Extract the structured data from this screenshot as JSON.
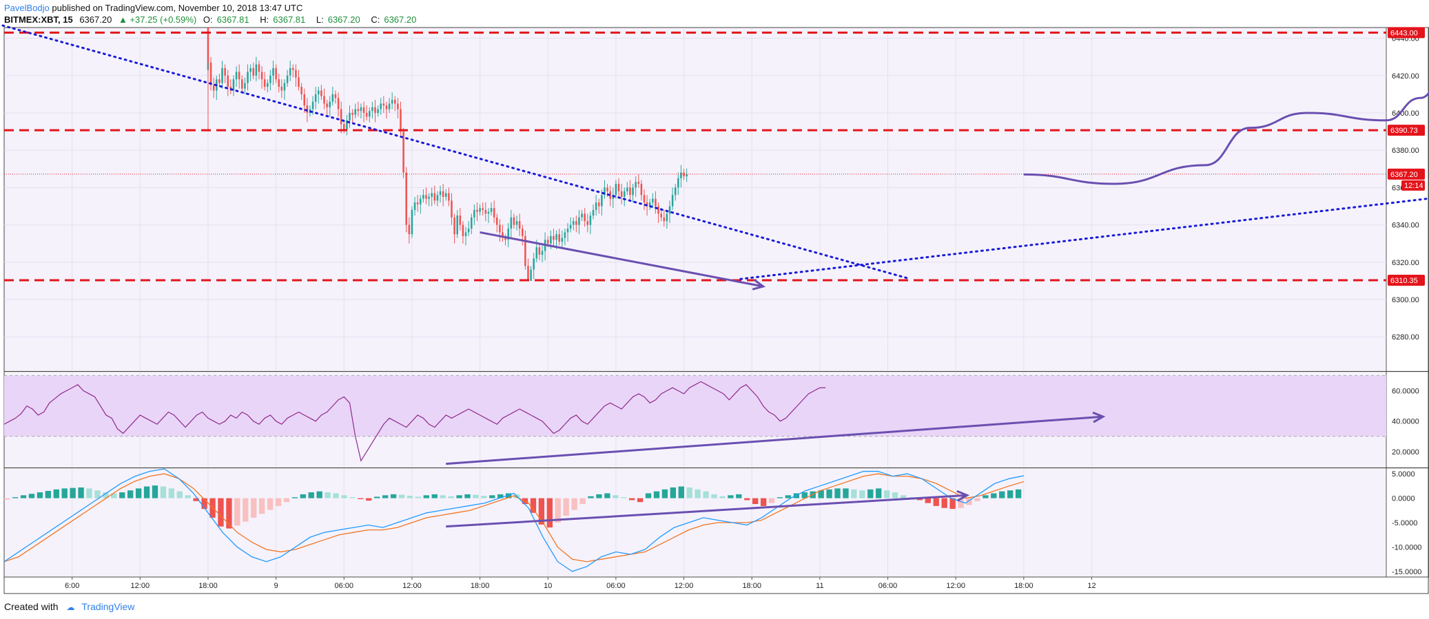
{
  "header": {
    "author": "PavelBodjo",
    "published": "published on TradingView.com, November 10, 2018 13:47 UTC",
    "symbol": "BITMEX:XBT, 15",
    "price": "6367.20",
    "change": "▲ +37.25 (+0.59%)",
    "open_label": "O:",
    "open": "6367.81",
    "high_label": "H:",
    "high": "6367.81",
    "low_label": "L:",
    "low": "6367.20",
    "close_label": "C:",
    "close": "6367.20"
  },
  "footer": {
    "created_with": "Created with",
    "brand": "TradingView"
  },
  "colors": {
    "up": "#26a69a",
    "down": "#ef5350",
    "level_line": "#e4141b",
    "trend_dotted": "#1a1ad8",
    "drawing": "#6a4fb0",
    "rsi": "#8e2a8e",
    "rsi_band": "#e9d5f7",
    "macd": "#1f9bff",
    "signal": "#f2751f",
    "hist_up_strong": "#26a69a",
    "hist_up_weak": "#a6e0d8",
    "hist_down_strong": "#ef5350",
    "hist_down_weak": "#f9c0c0",
    "background": "#f5f2fc"
  },
  "chart_data": [
    {
      "type": "candlestick",
      "ylim": [
        6262,
        6445
      ],
      "y_ticks": [
        "6280.00",
        "6300.00",
        "6320.00",
        "6340.00",
        "6360.00",
        "6380.00",
        "6400.00",
        "6420.00",
        "6440.00"
      ],
      "x_ticks": [
        "6:00",
        "12:00",
        "18:00",
        "9",
        "06:00",
        "12:00",
        "18:00",
        "10",
        "06:00",
        "12:00",
        "18:00",
        "11",
        "06:00",
        "12:00",
        "18:00",
        "12"
      ],
      "x_range_hours": [
        -18,
        104
      ],
      "series": [
        {
          "kind": "ohlc",
          "start_hour": 0,
          "interval_hours": 0.25,
          "closes": [
            6427,
            6415,
            6412,
            6418,
            6416,
            6424,
            6420,
            6414,
            6412,
            6418,
            6422,
            6418,
            6413,
            6416,
            6422,
            6424,
            6420,
            6426,
            6422,
            6418,
            6414,
            6416,
            6420,
            6424,
            6418,
            6414,
            6412,
            6416,
            6420,
            6424,
            6423,
            6419,
            6414,
            6410,
            6404,
            6400,
            6402,
            6406,
            6410,
            6412,
            6409,
            6405,
            6403,
            6406,
            6410,
            6408,
            6402,
            6394,
            6391,
            6396,
            6400,
            6399,
            6402,
            6401,
            6403,
            6400,
            6398,
            6401,
            6403,
            6400,
            6402,
            6405,
            6404,
            6402,
            6405,
            6407,
            6405,
            6402,
            6390,
            6368,
            6340,
            6335,
            6348,
            6352,
            6351,
            6354,
            6356,
            6354,
            6355,
            6357,
            6353,
            6356,
            6358,
            6355,
            6357,
            6353,
            6344,
            6335,
            6345,
            6340,
            6334,
            6336,
            6338,
            6344,
            6348,
            6347,
            6349,
            6348,
            6346,
            6347,
            6349,
            6344,
            6340,
            6336,
            6333,
            6332,
            6338,
            6344,
            6340,
            6342,
            6338,
            6334,
            6318,
            6310,
            6316,
            6322,
            6328,
            6324,
            6326,
            6332,
            6330,
            6334,
            6332,
            6335,
            6331,
            6333,
            6336,
            6338,
            6340,
            6342,
            6340,
            6344,
            6346,
            6342,
            6340,
            6345,
            6348,
            6352,
            6350,
            6356,
            6360,
            6358,
            6354,
            6356,
            6362,
            6358,
            6355,
            6358,
            6360,
            6356,
            6360,
            6363,
            6362,
            6356,
            6352,
            6350,
            6352,
            6354,
            6350,
            6346,
            6344,
            6342,
            6346,
            6350,
            6356,
            6360,
            6365,
            6368,
            6366,
            6367.2
          ],
          "wicks": {
            "low_min": 6310,
            "high_max": 6446
          }
        },
        {
          "name": "",
          "kind": "level",
          "value": 6443.0,
          "label": "6443.00"
        },
        {
          "name": "",
          "kind": "level",
          "value": 6390.73,
          "label": "6390.73"
        },
        {
          "name": "",
          "kind": "level",
          "value": 6310.35,
          "label": "6310.35"
        },
        {
          "name": "",
          "kind": "last_price",
          "value": 6367.2,
          "label": "6367.20",
          "countdown": "12:14"
        }
      ],
      "annotations": {
        "dotted_downtrend": {
          "from": [
            -20,
            6450
          ],
          "to": [
            62,
            6311
          ]
        },
        "dotted_uptrend": {
          "from": [
            47,
            6311
          ],
          "to": [
            140,
            6377
          ]
        },
        "divergence_arrow_price": {
          "from": [
            24,
            6336
          ],
          "to": [
            49,
            6307
          ]
        },
        "projection_curve": [
          [
            72,
            6367
          ],
          [
            80,
            6362
          ],
          [
            88,
            6372
          ],
          [
            92,
            6392
          ],
          [
            97,
            6400
          ],
          [
            104,
            6396
          ],
          [
            107,
            6408
          ],
          [
            109,
            6418
          ]
        ],
        "up_arrow": {
          "at": [
            110,
            6442
          ]
        }
      }
    },
    {
      "type": "line",
      "name": "",
      "ylim": [
        10,
        72
      ],
      "y_ticks": [
        "20.0000",
        "40.0000",
        "60.0000"
      ],
      "band": [
        30,
        70
      ],
      "values": [
        38,
        40,
        42,
        45,
        50,
        48,
        44,
        46,
        52,
        55,
        58,
        60,
        62,
        64,
        60,
        58,
        56,
        50,
        44,
        42,
        35,
        32,
        36,
        40,
        44,
        42,
        40,
        38,
        42,
        46,
        44,
        40,
        36,
        40,
        44,
        46,
        42,
        40,
        38,
        40,
        44,
        42,
        46,
        44,
        40,
        38,
        42,
        44,
        40,
        38,
        42,
        44,
        46,
        44,
        42,
        40,
        44,
        46,
        50,
        54,
        56,
        52,
        30,
        14,
        20,
        26,
        32,
        38,
        42,
        40,
        38,
        36,
        40,
        44,
        42,
        38,
        36,
        40,
        44,
        42,
        44,
        46,
        48,
        46,
        44,
        42,
        40,
        38,
        42,
        44,
        46,
        48,
        46,
        44,
        42,
        40,
        36,
        32,
        34,
        38,
        42,
        44,
        40,
        38,
        42,
        46,
        50,
        52,
        50,
        48,
        52,
        56,
        58,
        56,
        52,
        54,
        58,
        60,
        62,
        60,
        58,
        62,
        64,
        66,
        64,
        62,
        60,
        58,
        54,
        58,
        62,
        64,
        60,
        56,
        50,
        46,
        44,
        40,
        42,
        46,
        50,
        54,
        58,
        60,
        62,
        62
      ],
      "start_hour": -18,
      "interval_hours": 0.5,
      "annotations": {
        "divergence_arrow": {
          "from": [
            21,
            12
          ],
          "to": [
            79,
            43
          ]
        }
      }
    },
    {
      "type": "bar",
      "name": "",
      "ylim": [
        -16,
        6
      ],
      "y_ticks": [
        "5.0000",
        "0.0000",
        "-5.0000",
        "-10.0000",
        "-15.0000"
      ],
      "histogram": [
        -0.3,
        0.2,
        0.6,
        0.9,
        1.2,
        1.5,
        1.8,
        2.0,
        2.1,
        2.2,
        2.0,
        1.6,
        1.2,
        1.0,
        1.2,
        1.6,
        2.0,
        2.4,
        2.6,
        2.4,
        2.0,
        1.4,
        0.6,
        -0.6,
        -2.2,
        -4.0,
        -5.8,
        -6.2,
        -5.6,
        -4.8,
        -4.0,
        -3.2,
        -2.4,
        -1.6,
        -0.8,
        0.2,
        0.8,
        1.2,
        1.4,
        1.2,
        1.0,
        0.6,
        0.2,
        -0.2,
        -0.5,
        0.3,
        0.6,
        0.8,
        0.7,
        0.5,
        0.3,
        0.6,
        0.8,
        0.6,
        0.4,
        0.6,
        0.8,
        0.7,
        0.5,
        0.6,
        0.8,
        1.0,
        0.8,
        -1.2,
        -3.0,
        -5.4,
        -6.0,
        -5.0,
        -3.6,
        -2.4,
        -1.2,
        0.4,
        0.8,
        1.0,
        0.6,
        0.2,
        -0.4,
        -0.8,
        1.0,
        1.4,
        1.8,
        2.2,
        2.4,
        2.2,
        1.8,
        1.4,
        0.8,
        0.4,
        0.6,
        0.8,
        -0.4,
        -1.2,
        -1.6,
        -1.0,
        0.2,
        0.6,
        1.0,
        1.2,
        1.4,
        1.6,
        1.8,
        2.0,
        2.0,
        1.8,
        1.6,
        1.8,
        2.0,
        1.6,
        1.2,
        0.6,
        0.2,
        -0.4,
        -1.0,
        -1.6,
        -2.0,
        -2.2,
        -2.0,
        -1.4,
        -0.6,
        0.6,
        1.0,
        1.4,
        1.6,
        1.8
      ],
      "macd": [
        -13,
        -11,
        -9,
        -7,
        -5,
        -3,
        -1,
        1,
        3,
        4.5,
        5.5,
        6,
        4,
        1,
        -3,
        -7,
        -10,
        -12,
        -13,
        -12,
        -10,
        -8,
        -7,
        -6.5,
        -6,
        -5.5,
        -6,
        -5,
        -4,
        -3,
        -2.5,
        -2,
        -1.5,
        -1,
        0,
        1,
        -2,
        -8,
        -13,
        -15,
        -14,
        -12,
        -11,
        -11.5,
        -10.5,
        -8,
        -6,
        -5,
        -4,
        -4.5,
        -5,
        -5.5,
        -4,
        -2,
        0,
        1.5,
        2.5,
        3.5,
        4.5,
        5.5,
        5.5,
        4.5,
        5,
        4,
        2,
        0,
        -1,
        1,
        3,
        4,
        4.6
      ],
      "signal": [
        -13,
        -12,
        -10,
        -8,
        -6,
        -4,
        -2,
        0,
        2,
        3.5,
        4.5,
        5,
        4,
        2,
        -1,
        -4,
        -7,
        -9,
        -10.5,
        -11,
        -10.5,
        -9.5,
        -8.5,
        -7.5,
        -7,
        -6.5,
        -6.5,
        -6,
        -5,
        -4,
        -3.5,
        -3,
        -2.5,
        -1.5,
        -0.5,
        0.5,
        -1,
        -5,
        -10,
        -12.5,
        -13,
        -12.5,
        -12,
        -11.5,
        -11,
        -9.5,
        -8,
        -6.5,
        -5.5,
        -5,
        -5,
        -5,
        -4.5,
        -3,
        -1.5,
        0,
        1.5,
        2.5,
        3.5,
        4.5,
        5,
        4.5,
        4.5,
        4,
        3,
        1.5,
        0,
        0.5,
        1.5,
        2.5,
        3.4
      ],
      "start_hour": -18,
      "annotations": {
        "divergence_arrow": {
          "from": [
            21,
            -5.8
          ],
          "to": [
            67,
            0.6
          ]
        }
      }
    }
  ]
}
